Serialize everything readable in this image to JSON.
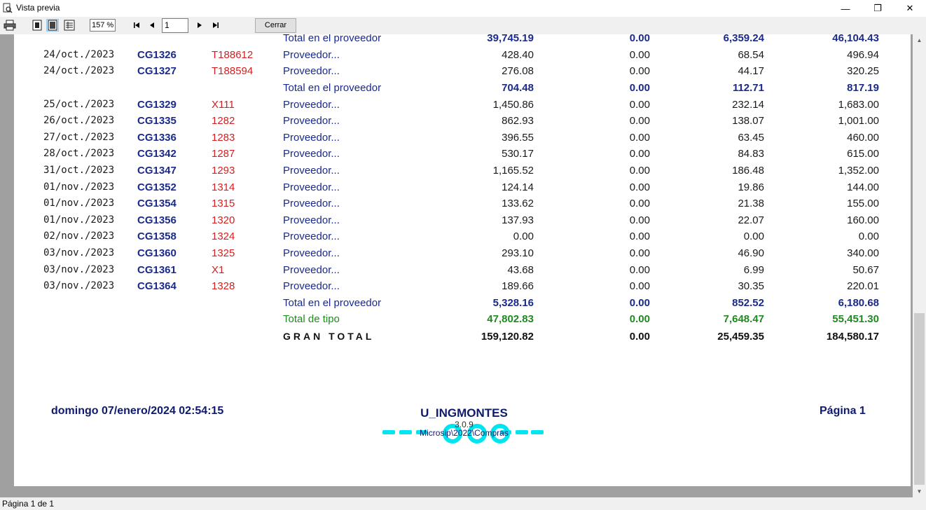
{
  "window": {
    "title": "Vista previa",
    "minimize": "—",
    "maximize": "❐",
    "close": "✕"
  },
  "toolbar": {
    "zoom": "157 %",
    "page": "1",
    "close_label": "Cerrar"
  },
  "status": {
    "text": "Página 1 de 1"
  },
  "rows": [
    {
      "type": "total",
      "date": "",
      "code": "",
      "ref": "",
      "desc": "Total en el proveedor",
      "n1": "39,745.19",
      "n2": "0.00",
      "n3": "6,359.24",
      "n4": "46,104.43"
    },
    {
      "type": "plain",
      "date": "24/oct./2023",
      "code": "CG1326",
      "ref": "T188612",
      "desc": "Proveedor...",
      "n1": "428.40",
      "n2": "0.00",
      "n3": "68.54",
      "n4": "496.94"
    },
    {
      "type": "plain",
      "date": "24/oct./2023",
      "code": "CG1327",
      "ref": "T188594",
      "desc": "Proveedor...",
      "n1": "276.08",
      "n2": "0.00",
      "n3": "44.17",
      "n4": "320.25"
    },
    {
      "type": "total",
      "date": "",
      "code": "",
      "ref": "",
      "desc": "Total en el proveedor",
      "n1": "704.48",
      "n2": "0.00",
      "n3": "112.71",
      "n4": "817.19"
    },
    {
      "type": "plain",
      "date": "25/oct./2023",
      "code": "CG1329",
      "ref": "X111",
      "desc": "Proveedor...",
      "n1": "1,450.86",
      "n2": "0.00",
      "n3": "232.14",
      "n4": "1,683.00"
    },
    {
      "type": "plain",
      "date": "26/oct./2023",
      "code": "CG1335",
      "ref": "1282",
      "desc": "Proveedor...",
      "n1": "862.93",
      "n2": "0.00",
      "n3": "138.07",
      "n4": "1,001.00"
    },
    {
      "type": "plain",
      "date": "27/oct./2023",
      "code": "CG1336",
      "ref": "1283",
      "desc": "Proveedor...",
      "n1": "396.55",
      "n2": "0.00",
      "n3": "63.45",
      "n4": "460.00"
    },
    {
      "type": "plain",
      "date": "28/oct./2023",
      "code": "CG1342",
      "ref": "1287",
      "desc": "Proveedor...",
      "n1": "530.17",
      "n2": "0.00",
      "n3": "84.83",
      "n4": "615.00"
    },
    {
      "type": "plain",
      "date": "31/oct./2023",
      "code": "CG1347",
      "ref": "1293",
      "desc": "Proveedor...",
      "n1": "1,165.52",
      "n2": "0.00",
      "n3": "186.48",
      "n4": "1,352.00"
    },
    {
      "type": "plain",
      "date": "01/nov./2023",
      "code": "CG1352",
      "ref": "1314",
      "desc": "Proveedor...",
      "n1": "124.14",
      "n2": "0.00",
      "n3": "19.86",
      "n4": "144.00"
    },
    {
      "type": "plain",
      "date": "01/nov./2023",
      "code": "CG1354",
      "ref": "1315",
      "desc": "Proveedor...",
      "n1": "133.62",
      "n2": "0.00",
      "n3": "21.38",
      "n4": "155.00"
    },
    {
      "type": "plain",
      "date": "01/nov./2023",
      "code": "CG1356",
      "ref": "1320",
      "desc": "Proveedor...",
      "n1": "137.93",
      "n2": "0.00",
      "n3": "22.07",
      "n4": "160.00"
    },
    {
      "type": "plain",
      "date": "02/nov./2023",
      "code": "CG1358",
      "ref": "1324",
      "desc": "Proveedor...",
      "n1": "0.00",
      "n2": "0.00",
      "n3": "0.00",
      "n4": "0.00"
    },
    {
      "type": "plain",
      "date": "03/nov./2023",
      "code": "CG1360",
      "ref": "1325",
      "desc": "Proveedor...",
      "n1": "293.10",
      "n2": "0.00",
      "n3": "46.90",
      "n4": "340.00"
    },
    {
      "type": "plain",
      "date": "03/nov./2023",
      "code": "CG1361",
      "ref": "X1",
      "desc": "Proveedor...",
      "n1": "43.68",
      "n2": "0.00",
      "n3": "6.99",
      "n4": "50.67"
    },
    {
      "type": "plain",
      "date": "03/nov./2023",
      "code": "CG1364",
      "ref": "1328",
      "desc": "Proveedor...",
      "n1": "189.66",
      "n2": "0.00",
      "n3": "30.35",
      "n4": "220.01"
    },
    {
      "type": "total",
      "date": "",
      "code": "",
      "ref": "",
      "desc": "Total en el proveedor",
      "n1": "5,328.16",
      "n2": "0.00",
      "n3": "852.52",
      "n4": "6,180.68"
    },
    {
      "type": "tipo",
      "date": "",
      "code": "",
      "ref": "",
      "desc": "Total de tipo",
      "n1": "47,802.83",
      "n2": "0.00",
      "n3": "7,648.47",
      "n4": "55,451.30"
    },
    {
      "type": "grand",
      "date": "",
      "code": "",
      "ref": "",
      "desc": "GRAN TOTAL",
      "n1": "159,120.82",
      "n2": "0.00",
      "n3": "25,459.35",
      "n4": "184,580.17"
    }
  ],
  "footer": {
    "datetime": "domingo 07/enero/2024 02:54:15",
    "user": "U_INGMONTES",
    "version": "3.0.9",
    "path": "Microsip\\2022\\Compras",
    "page": "Página 1"
  },
  "colors": {
    "navy": "#1a2a8c",
    "red": "#d42020",
    "green": "#1f8a1f",
    "logo_cyan": "#00e5f0"
  }
}
